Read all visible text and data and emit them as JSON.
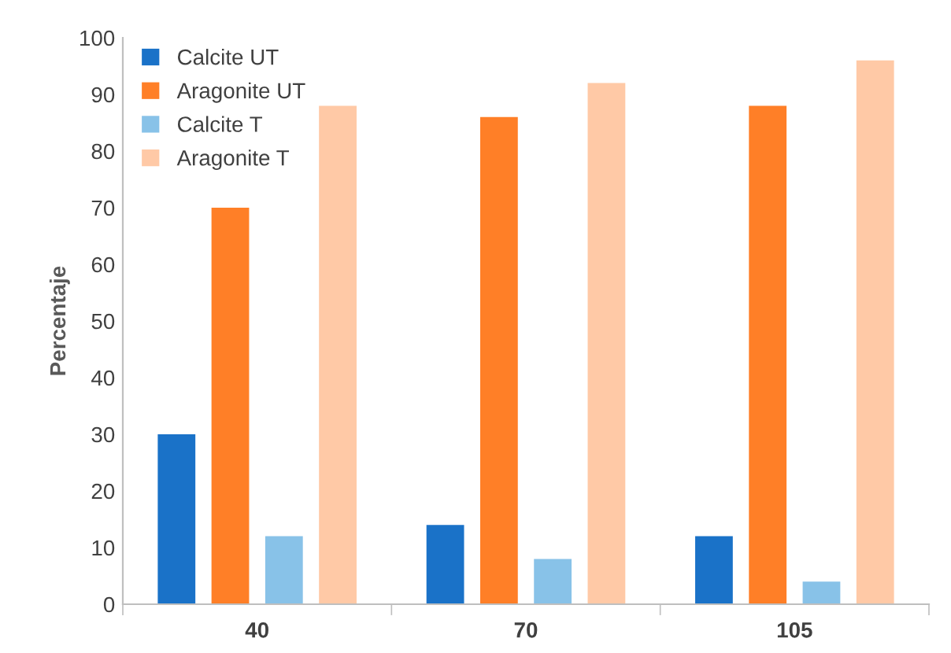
{
  "chart_data": {
    "type": "bar",
    "ylabel": "Percentaje",
    "categories": [
      "40",
      "70",
      "105"
    ],
    "series": [
      {
        "name": "Calcite UT",
        "color": "#1a72c8",
        "values": [
          30,
          14,
          12
        ]
      },
      {
        "name": "Aragonite UT",
        "color": "#ff7f27",
        "values": [
          70,
          86,
          88
        ]
      },
      {
        "name": "Calcite T",
        "color": "#88c2e8",
        "values": [
          12,
          8,
          4
        ]
      },
      {
        "name": "Aragonite T",
        "color": "#ffc9a6",
        "values": [
          88,
          92,
          96
        ]
      }
    ],
    "ylim": [
      0,
      100
    ],
    "yticks": [
      0,
      10,
      20,
      30,
      40,
      50,
      60,
      70,
      80,
      90,
      100
    ],
    "grid": false,
    "legend": "top left"
  }
}
